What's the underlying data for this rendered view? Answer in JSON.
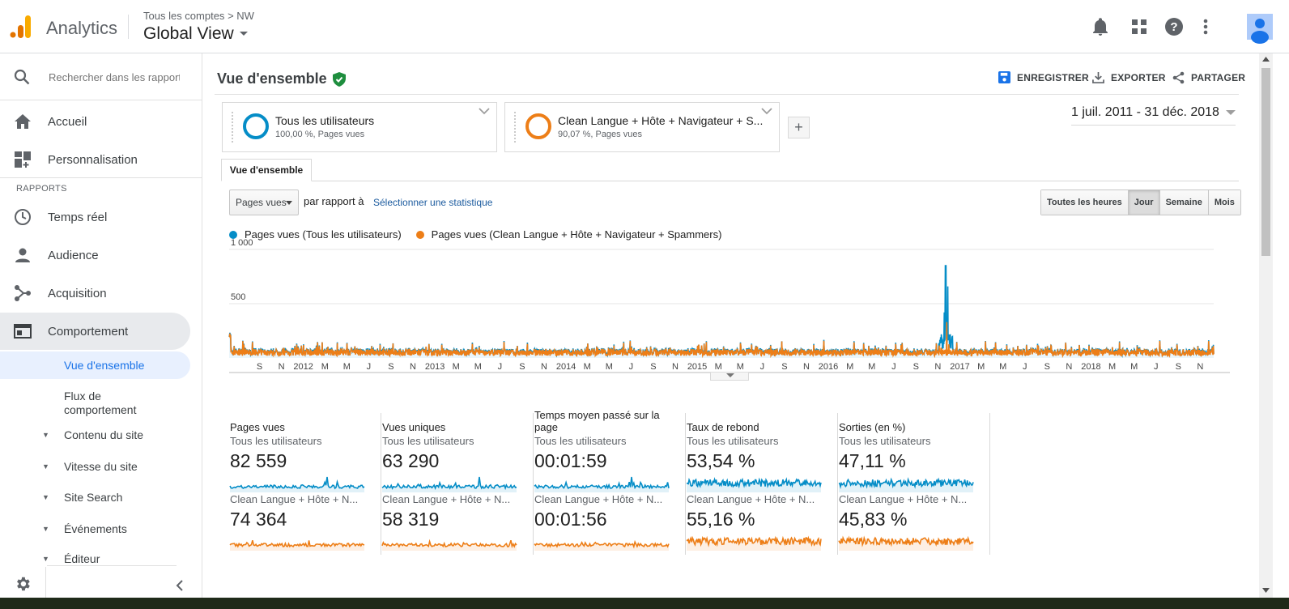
{
  "app": {
    "name": "Analytics"
  },
  "header": {
    "breadcrumb": [
      "Tous les comptes",
      ">",
      "NW"
    ],
    "view_name": "Global View"
  },
  "sidebar": {
    "search_placeholder": "Rechercher dans les rapport",
    "items_top": [
      {
        "label": "Accueil",
        "icon": "home-icon"
      },
      {
        "label": "Personnalisation",
        "icon": "dashboard-icon"
      }
    ],
    "section_label": "RAPPORTS",
    "items_reports": [
      {
        "label": "Temps réel",
        "icon": "clock-icon"
      },
      {
        "label": "Audience",
        "icon": "person-icon"
      },
      {
        "label": "Acquisition",
        "icon": "acquisition-icon"
      },
      {
        "label": "Comportement",
        "icon": "behavior-icon",
        "active": true
      }
    ],
    "sub_items": [
      {
        "label": "Vue d'ensemble",
        "active": true
      },
      {
        "label": "Flux de comportement"
      },
      {
        "label": "Contenu du site",
        "expandable": true
      },
      {
        "label": "Vitesse du site",
        "expandable": true
      },
      {
        "label": "Site Search",
        "expandable": true
      },
      {
        "label": "Événements",
        "expandable": true
      },
      {
        "label": "Éditeur",
        "expandable": true
      }
    ]
  },
  "main": {
    "title": "Vue d'ensemble",
    "actions": {
      "save": "ENREGISTRER",
      "export": "EXPORTER",
      "share": "PARTAGER"
    },
    "date_range": "1 juil. 2011 - 31 déc. 2018",
    "segments": [
      {
        "title": "Tous les utilisateurs",
        "subtitle": "100,00 %, Pages vues",
        "color": "#058dc7"
      },
      {
        "title": "Clean Langue + Hôte + Navigateur + S...",
        "subtitle": "90,07 %, Pages vues",
        "color": "#ed7e17"
      }
    ],
    "add_segment": "+",
    "tab": "Vue d'ensemble",
    "metric_select": "Pages vues",
    "compare_text": "par rapport à",
    "select_stat": "Sélectionner une statistique",
    "periods": [
      {
        "label": "Toutes les heures",
        "selected": false
      },
      {
        "label": "Jour",
        "selected": true
      },
      {
        "label": "Semaine",
        "selected": false
      },
      {
        "label": "Mois",
        "selected": false
      }
    ]
  },
  "chart_data": {
    "type": "line",
    "series": [
      {
        "name": "Pages vues (Tous les utilisateurs)",
        "color": "#058dc7"
      },
      {
        "name": "Pages vues (Clean Langue + Hôte + Navigateur + Spammers)",
        "color": "#ed7e17"
      }
    ],
    "x_range": [
      "2011-07-01",
      "2018-12-31"
    ],
    "ylim": [
      0,
      1000
    ],
    "y_ticks": [
      "1 000",
      "500"
    ],
    "x_tick_labels": [
      "S",
      "N",
      "2012",
      "M",
      "M",
      "J",
      "S",
      "N",
      "2013",
      "M",
      "M",
      "J",
      "S",
      "N",
      "2014",
      "M",
      "M",
      "J",
      "S",
      "N",
      "2015",
      "M",
      "M",
      "J",
      "S",
      "N",
      "2016",
      "M",
      "M",
      "J",
      "S",
      "N",
      "2017",
      "M",
      "M",
      "J",
      "S",
      "N",
      "2018",
      "M",
      "M",
      "J",
      "S",
      "N"
    ],
    "notable_points": [
      {
        "series": "Pages vues (Tous les utilisateurs)",
        "date": "2016-12",
        "value": 850
      },
      {
        "series": "Pages vues (Clean Langue + Hôte + Navigateur + Spammers)",
        "date": "2016-12",
        "value": 330
      }
    ],
    "typical_daily_range": [
      20,
      180
    ],
    "grid": true,
    "legend_position": "top-left"
  },
  "scorecards": [
    {
      "title": "Pages vues",
      "seg1": "Tous les utilisateurs",
      "val1": "82 559",
      "seg2": "Clean Langue + Hôte + N...",
      "val2": "74 364",
      "shape": "spiky"
    },
    {
      "title": "Vues uniques",
      "seg1": "Tous les utilisateurs",
      "val1": "63 290",
      "seg2": "Clean Langue + Hôte + N...",
      "val2": "58 319",
      "shape": "spiky"
    },
    {
      "title": "Temps moyen passé sur la page",
      "seg1": "Tous les utilisateurs",
      "val1": "00:01:59",
      "seg2": "Clean Langue + Hôte + N...",
      "val2": "00:01:56",
      "shape": "spiky"
    },
    {
      "title": "Taux de rebond",
      "seg1": "Tous les utilisateurs",
      "val1": "53,54 %",
      "seg2": "Clean Langue + Hôte + N...",
      "val2": "55,16 %",
      "shape": "dense"
    },
    {
      "title": "Sorties (en %)",
      "seg1": "Tous les utilisateurs",
      "val1": "47,11 %",
      "seg2": "Clean Langue + Hôte + N...",
      "val2": "45,83 %",
      "shape": "dense"
    }
  ],
  "colors": {
    "blue": "#058dc7",
    "orange": "#ed7e17",
    "accent": "#1a73e8"
  }
}
